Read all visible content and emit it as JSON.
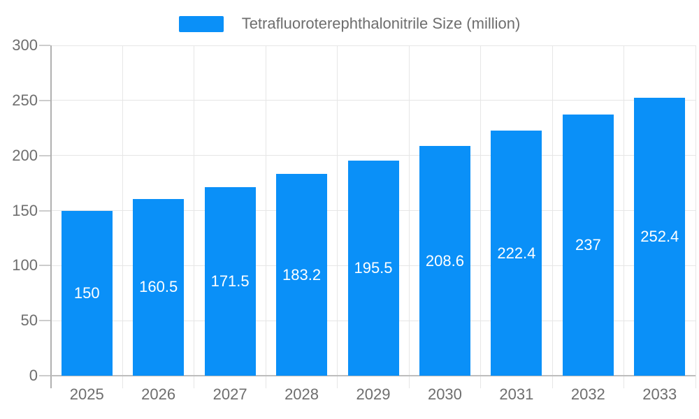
{
  "chart_data": {
    "type": "bar",
    "title": "Tetrafluoroterephthalonitrile Size (million)",
    "legend": {
      "label": "Tetrafluoroterephthalonitrile Size (million)",
      "position": "top"
    },
    "categories": [
      "2025",
      "2026",
      "2027",
      "2028",
      "2029",
      "2030",
      "2031",
      "2032",
      "2033"
    ],
    "series": [
      {
        "name": "Tetrafluoroterephthalonitrile Size (million)",
        "values": [
          150,
          160.5,
          171.5,
          183.2,
          195.5,
          208.6,
          222.4,
          237,
          252.4
        ],
        "value_labels": [
          "150",
          "160.5",
          "171.5",
          "183.2",
          "195.5",
          "208.6",
          "222.4",
          "237",
          "252.4"
        ]
      }
    ],
    "xlabel": "",
    "ylabel": "",
    "ylim": [
      0,
      300
    ],
    "yticks": [
      0,
      50,
      100,
      150,
      200,
      250,
      300
    ],
    "grid": true,
    "value_labels_position": "inside-center",
    "colors": {
      "bar": "#0a90f8",
      "gridline": "#e6e6e6",
      "axis_line": "#b0b0b0",
      "baseline": "#bdbdbd",
      "tick": "#cccccc",
      "axis_text": "#6e6e6e",
      "value_label_text": "#ffffff",
      "background": "#ffffff"
    }
  }
}
